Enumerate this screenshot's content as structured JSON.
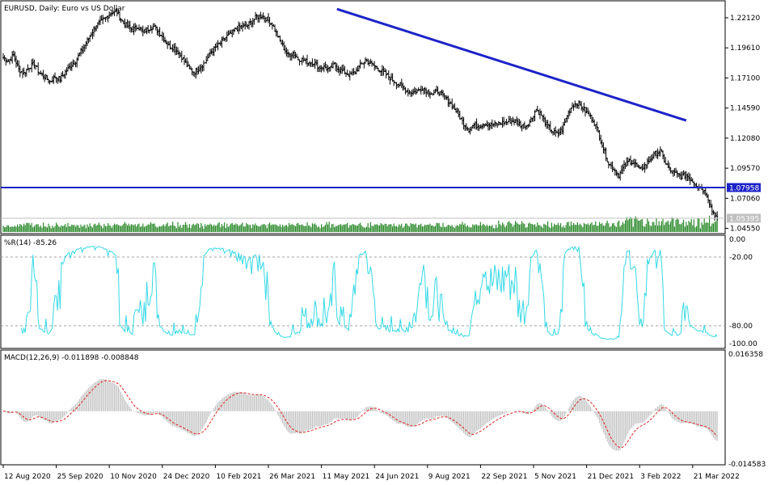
{
  "chart_data": {
    "type": "candlestick",
    "symbol_title": "EURUSD, Daily:  Euro vs US Dollar",
    "price_axis": {
      "ylim": [
        1.0425,
        1.234
      ],
      "ticks": [
        "1.22120",
        "1.19610",
        "1.17100",
        "1.14590",
        "1.12080",
        "1.09570",
        "1.07060",
        "1.04550"
      ]
    },
    "price_path": [
      [
        0,
        1.188
      ],
      [
        4,
        1.185
      ],
      [
        8,
        1.19
      ],
      [
        12,
        1.178
      ],
      [
        16,
        1.175
      ],
      [
        20,
        1.18
      ],
      [
        24,
        1.183
      ],
      [
        28,
        1.175
      ],
      [
        32,
        1.172
      ],
      [
        36,
        1.168
      ],
      [
        40,
        1.172
      ],
      [
        44,
        1.17
      ],
      [
        48,
        1.176
      ],
      [
        52,
        1.181
      ],
      [
        56,
        1.185
      ],
      [
        60,
        1.193
      ],
      [
        64,
        1.2
      ],
      [
        68,
        1.208
      ],
      [
        72,
        1.215
      ],
      [
        76,
        1.218
      ],
      [
        80,
        1.222
      ],
      [
        84,
        1.226
      ],
      [
        88,
        1.226
      ],
      [
        92,
        1.218
      ],
      [
        96,
        1.214
      ],
      [
        100,
        1.211
      ],
      [
        104,
        1.214
      ],
      [
        108,
        1.209
      ],
      [
        112,
        1.212
      ],
      [
        116,
        1.214
      ],
      [
        120,
        1.21
      ],
      [
        124,
        1.204
      ],
      [
        128,
        1.198
      ],
      [
        132,
        1.196
      ],
      [
        136,
        1.192
      ],
      [
        140,
        1.185
      ],
      [
        144,
        1.178
      ],
      [
        148,
        1.176
      ],
      [
        152,
        1.18
      ],
      [
        156,
        1.184
      ],
      [
        160,
        1.192
      ],
      [
        164,
        1.196
      ],
      [
        168,
        1.2
      ],
      [
        172,
        1.205
      ],
      [
        176,
        1.208
      ],
      [
        180,
        1.212
      ],
      [
        184,
        1.214
      ],
      [
        188,
        1.214
      ],
      [
        192,
        1.218
      ],
      [
        196,
        1.222
      ],
      [
        200,
        1.223
      ],
      [
        204,
        1.22
      ],
      [
        208,
        1.216
      ],
      [
        212,
        1.206
      ],
      [
        216,
        1.198
      ],
      [
        220,
        1.19
      ],
      [
        224,
        1.192
      ],
      [
        228,
        1.187
      ],
      [
        232,
        1.186
      ],
      [
        236,
        1.184
      ],
      [
        240,
        1.184
      ],
      [
        244,
        1.18
      ],
      [
        248,
        1.18
      ],
      [
        252,
        1.178
      ],
      [
        256,
        1.182
      ],
      [
        260,
        1.178
      ],
      [
        264,
        1.176
      ],
      [
        268,
        1.173
      ],
      [
        272,
        1.176
      ],
      [
        276,
        1.181
      ],
      [
        280,
        1.186
      ],
      [
        284,
        1.183
      ],
      [
        288,
        1.18
      ],
      [
        292,
        1.177
      ],
      [
        296,
        1.174
      ],
      [
        300,
        1.17
      ],
      [
        304,
        1.167
      ],
      [
        308,
        1.164
      ],
      [
        312,
        1.16
      ],
      [
        316,
        1.159
      ],
      [
        320,
        1.16
      ],
      [
        324,
        1.163
      ],
      [
        328,
        1.16
      ],
      [
        332,
        1.158
      ],
      [
        336,
        1.16
      ],
      [
        340,
        1.156
      ],
      [
        344,
        1.152
      ],
      [
        348,
        1.147
      ],
      [
        352,
        1.14
      ],
      [
        356,
        1.133
      ],
      [
        360,
        1.128
      ],
      [
        364,
        1.132
      ],
      [
        368,
        1.131
      ],
      [
        372,
        1.133
      ],
      [
        376,
        1.132
      ],
      [
        380,
        1.132
      ],
      [
        384,
        1.133
      ],
      [
        388,
        1.134
      ],
      [
        392,
        1.135
      ],
      [
        396,
        1.135
      ],
      [
        400,
        1.132
      ],
      [
        404,
        1.131
      ],
      [
        408,
        1.136
      ],
      [
        412,
        1.145
      ],
      [
        416,
        1.14
      ],
      [
        420,
        1.132
      ],
      [
        424,
        1.127
      ],
      [
        428,
        1.124
      ],
      [
        432,
        1.128
      ],
      [
        436,
        1.14
      ],
      [
        440,
        1.148
      ],
      [
        444,
        1.15
      ],
      [
        448,
        1.146
      ],
      [
        452,
        1.141
      ],
      [
        456,
        1.136
      ],
      [
        460,
        1.126
      ],
      [
        464,
        1.112
      ],
      [
        468,
        1.1
      ],
      [
        472,
        1.095
      ],
      [
        476,
        1.09
      ],
      [
        480,
        1.097
      ],
      [
        484,
        1.102
      ],
      [
        488,
        1.1
      ],
      [
        492,
        1.094
      ],
      [
        496,
        1.098
      ],
      [
        500,
        1.103
      ],
      [
        504,
        1.108
      ],
      [
        508,
        1.11
      ],
      [
        512,
        1.1
      ],
      [
        516,
        1.093
      ],
      [
        520,
        1.091
      ],
      [
        524,
        1.089
      ],
      [
        528,
        1.09
      ],
      [
        532,
        1.086
      ],
      [
        536,
        1.082
      ],
      [
        540,
        1.079
      ],
      [
        544,
        1.074
      ],
      [
        548,
        1.06
      ],
      [
        552,
        1.054
      ]
    ],
    "trendline_label": "",
    "support_level": {
      "label": "1.07958",
      "value": 1.07958
    },
    "current_price": {
      "label": "1.05395",
      "value": 1.05395
    },
    "williams_r": {
      "title": "%R(14) -85.26",
      "ticks": [
        "0.00",
        "-20.00",
        "-80.00",
        "-100.00"
      ],
      "levels": [
        -20,
        -80
      ],
      "ylim": [
        -100,
        0
      ]
    },
    "macd": {
      "title": "MACD(12,26,9) -0.011898 -0.008848",
      "ticks": [
        "0.016358",
        "-0.014583"
      ],
      "ylim": [
        -0.014583,
        0.016358
      ]
    },
    "time_axis": {
      "labels": [
        "12 Aug 2020",
        "25 Sep 2020",
        "10 Nov 2020",
        "24 Dec 2020",
        "10 Feb 2021",
        "26 Mar 2021",
        "11 May 2021",
        "24 Jun 2021",
        "9 Aug 2021",
        "22 Sep 2021",
        "5 Nov 2021",
        "21 Dec 2021",
        "3 Feb 2022",
        "21 Mar 2022"
      ]
    }
  },
  "colors": {
    "candles": "#000000",
    "trendline": "#1d23c8",
    "support_line": "#1d23c8",
    "current_line": "#c0c0c0",
    "volume": "#2e8b2e",
    "wpr_line": "#34d8e6",
    "macd_hist": "#c0c0c0",
    "macd_signal": "#e02020",
    "grid_dash": "#a0a0a0"
  }
}
